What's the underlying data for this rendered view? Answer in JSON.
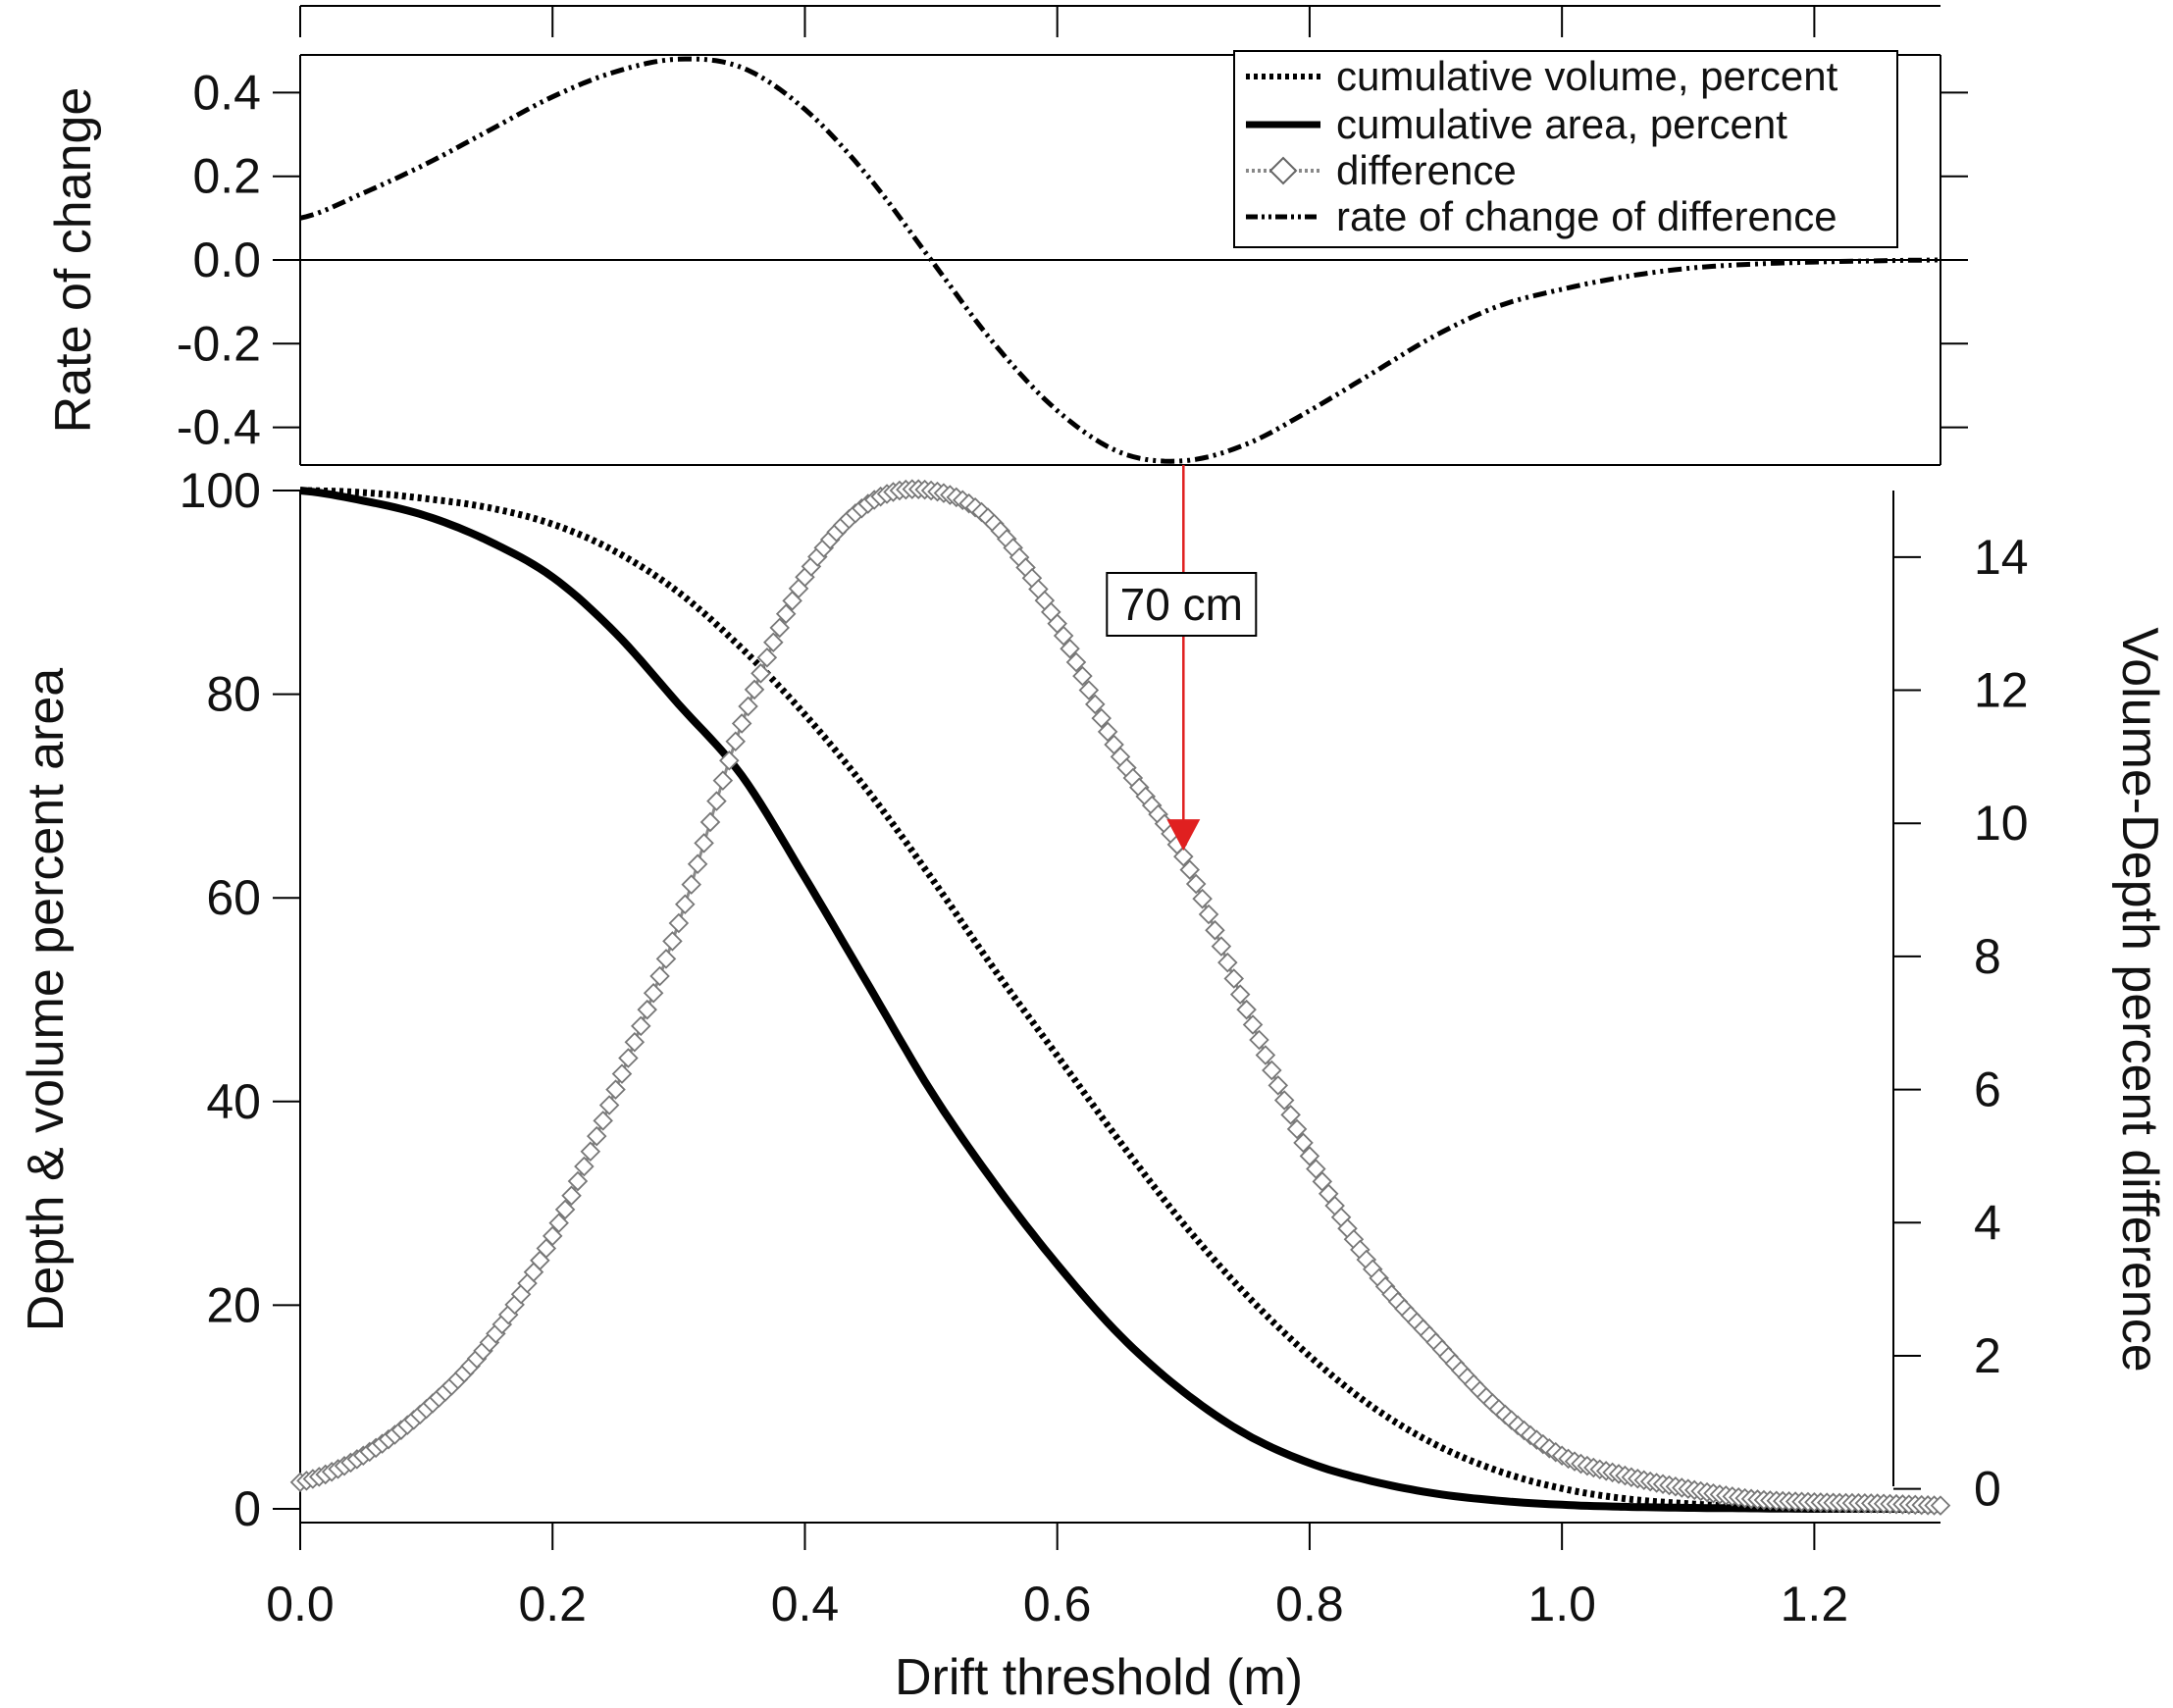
{
  "chart_data": [
    {
      "panel": "top",
      "type": "line",
      "ylabel": "Rate of change",
      "ylim": [
        -0.49,
        0.49
      ],
      "yticks": [
        "0.4",
        "0.2",
        "0.0",
        "-0.2",
        "-0.4"
      ],
      "yticks_values": [
        0.4,
        0.2,
        0.0,
        -0.2,
        -0.4
      ],
      "xlim": [
        0.0,
        1.3
      ],
      "zero_line": true,
      "series": [
        {
          "name": "rate of change of difference",
          "style": "dash-dot-dot",
          "color": "#000000",
          "x": [
            0.0,
            0.05,
            0.1,
            0.15,
            0.2,
            0.25,
            0.3,
            0.35,
            0.4,
            0.45,
            0.5,
            0.55,
            0.6,
            0.65,
            0.7,
            0.75,
            0.8,
            0.85,
            0.9,
            0.95,
            1.0,
            1.05,
            1.1,
            1.15,
            1.2,
            1.25,
            1.3
          ],
          "y": [
            0.1,
            0.16,
            0.23,
            0.31,
            0.39,
            0.45,
            0.48,
            0.46,
            0.36,
            0.2,
            0.0,
            -0.2,
            -0.36,
            -0.46,
            -0.48,
            -0.44,
            -0.36,
            -0.27,
            -0.18,
            -0.11,
            -0.07,
            -0.04,
            -0.02,
            -0.01,
            -0.005,
            -0.002,
            0.0
          ]
        }
      ]
    },
    {
      "panel": "bottom",
      "type": "line",
      "xlabel": "Drift threshold (m)",
      "ylabel": "Depth & volume percent area",
      "y2label": "Volume-Depth percent difference",
      "xlim": [
        0.0,
        1.3
      ],
      "xticks": [
        "0.0",
        "0.2",
        "0.4",
        "0.6",
        "0.8",
        "1.0",
        "1.2"
      ],
      "xticks_values": [
        0.0,
        0.2,
        0.4,
        0.6,
        0.8,
        1.0,
        1.2
      ],
      "ylim": [
        0,
        100
      ],
      "yticks": [
        "100",
        "80",
        "60",
        "40",
        "20",
        "0"
      ],
      "yticks_values": [
        100,
        80,
        60,
        40,
        20,
        0
      ],
      "y2lim": [
        -0.3,
        15.0
      ],
      "y2ticks": [
        "14",
        "12",
        "10",
        "8",
        "6",
        "4",
        "2",
        "0"
      ],
      "y2ticks_values": [
        14,
        12,
        10,
        8,
        6,
        4,
        2,
        0
      ],
      "series": [
        {
          "name": "cumulative volume, percent",
          "axis": "left",
          "style": "dotted",
          "color": "#000000",
          "x": [
            0.0,
            0.05,
            0.1,
            0.15,
            0.2,
            0.25,
            0.3,
            0.35,
            0.4,
            0.45,
            0.5,
            0.55,
            0.6,
            0.65,
            0.7,
            0.75,
            0.8,
            0.85,
            0.9,
            0.95,
            1.0,
            1.05,
            1.1,
            1.15,
            1.2,
            1.25,
            1.3
          ],
          "y": [
            100,
            99.8,
            99.2,
            98.3,
            96.7,
            94.0,
            90.0,
            84.5,
            78.0,
            70.5,
            62.0,
            53.0,
            44.5,
            36.0,
            28.0,
            21.0,
            15.0,
            10.0,
            6.3,
            3.7,
            2.0,
            1.0,
            0.5,
            0.2,
            0.1,
            0.05,
            0.0
          ]
        },
        {
          "name": "cumulative area, percent",
          "axis": "left",
          "style": "solid",
          "color": "#000000",
          "x": [
            0.0,
            0.05,
            0.1,
            0.15,
            0.2,
            0.25,
            0.3,
            0.35,
            0.4,
            0.45,
            0.5,
            0.55,
            0.6,
            0.65,
            0.7,
            0.75,
            0.8,
            0.85,
            0.9,
            0.95,
            1.0,
            1.05,
            1.1,
            1.15,
            1.2,
            1.25,
            1.3
          ],
          "y": [
            100,
            99.0,
            97.5,
            95.0,
            91.5,
            86.0,
            79.0,
            72.0,
            62.0,
            51.5,
            41.0,
            32.0,
            24.0,
            17.0,
            11.5,
            7.3,
            4.5,
            2.7,
            1.5,
            0.8,
            0.4,
            0.2,
            0.1,
            0.05,
            0.0,
            0.0,
            0.0
          ]
        },
        {
          "name": "difference",
          "axis": "right",
          "style": "diamond-markers",
          "color": "#8a8a8a",
          "x": [
            0.0,
            0.05,
            0.1,
            0.15,
            0.2,
            0.25,
            0.3,
            0.35,
            0.4,
            0.45,
            0.5,
            0.55,
            0.6,
            0.65,
            0.7,
            0.75,
            0.8,
            0.85,
            0.9,
            0.95,
            1.0,
            1.05,
            1.1,
            1.15,
            1.2,
            1.25,
            1.3
          ],
          "y": [
            0.1,
            0.5,
            1.2,
            2.2,
            3.8,
            6.0,
            8.5,
            11.5,
            13.7,
            14.8,
            15.0,
            14.5,
            13.0,
            11.0,
            9.5,
            7.2,
            5.0,
            3.3,
            2.2,
            1.2,
            0.5,
            0.2,
            0.0,
            -0.15,
            -0.2,
            -0.22,
            -0.25
          ]
        }
      ],
      "annotation": {
        "label": "70 cm",
        "x": 0.7,
        "arrow_to_y2": 9.5,
        "color": "#e02020"
      }
    }
  ],
  "legend": {
    "placement": "top-right",
    "items": [
      {
        "label": "cumulative volume, percent",
        "style": "dotted"
      },
      {
        "label": "cumulative area, percent",
        "style": "solid"
      },
      {
        "label": "difference",
        "style": "diamond"
      },
      {
        "label": "rate of change of difference",
        "style": "dash-dot-dot"
      }
    ]
  }
}
